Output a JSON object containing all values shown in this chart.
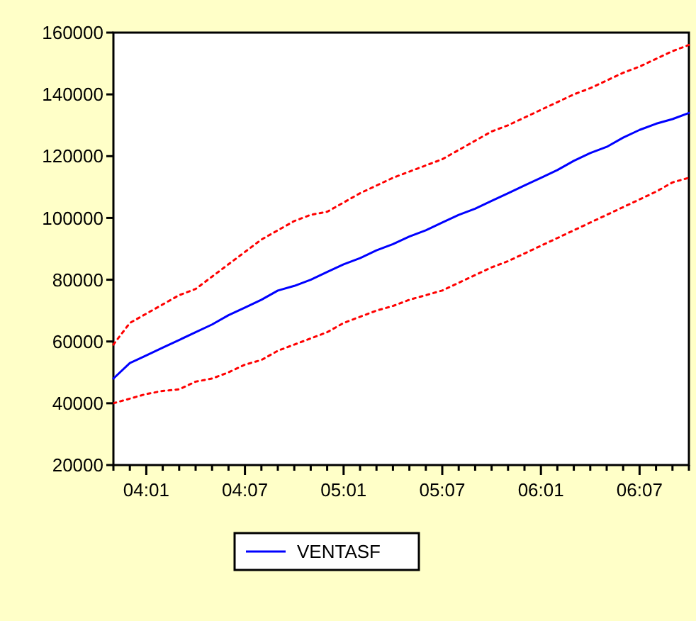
{
  "chart_data": {
    "type": "line",
    "categories": [
      null,
      null,
      "04:01",
      null,
      null,
      null,
      null,
      null,
      "04:07",
      null,
      null,
      null,
      null,
      null,
      "05:01",
      null,
      null,
      null,
      null,
      null,
      "05:07",
      null,
      null,
      null,
      null,
      null,
      "06:01",
      null,
      null,
      null,
      null,
      null,
      "06:07",
      null,
      null,
      null
    ],
    "series": [
      {
        "name": "VENTASF",
        "color": "#0000ff",
        "line_style": "solid",
        "values": [
          48000,
          53000,
          55500,
          58000,
          60500,
          63000,
          65500,
          68500,
          71000,
          73500,
          76500,
          78000,
          80000,
          82500,
          85000,
          87000,
          89500,
          91500,
          94000,
          96000,
          98500,
          101000,
          103000,
          105500,
          108000,
          110500,
          113000,
          115500,
          118500,
          121000,
          123000,
          126000,
          128500,
          130500,
          132000,
          134000
        ]
      },
      {
        "color": "#ff0000",
        "line_style": "dotted",
        "values": [
          59000,
          66000,
          69000,
          72000,
          75000,
          77000,
          81000,
          85000,
          89000,
          93000,
          96000,
          99000,
          101000,
          102000,
          105000,
          108000,
          110500,
          113000,
          115000,
          117000,
          119000,
          122000,
          125000,
          128000,
          130000,
          132500,
          135000,
          137500,
          140000,
          142000,
          144500,
          147000,
          149000,
          151500,
          154000,
          156000
        ]
      },
      {
        "color": "#ff0000",
        "line_style": "dotted",
        "values": [
          40000,
          41500,
          43000,
          44000,
          44500,
          47000,
          48000,
          50000,
          52500,
          54000,
          57000,
          59000,
          61000,
          63000,
          66000,
          68000,
          70000,
          71500,
          73500,
          75000,
          76500,
          79000,
          81500,
          84000,
          86000,
          88500,
          91000,
          93500,
          96000,
          98500,
          101000,
          103500,
          106000,
          108500,
          111500,
          113000
        ]
      }
    ],
    "ylim": [
      20000,
      160000
    ],
    "yticks": [
      20000,
      40000,
      60000,
      80000,
      100000,
      120000,
      140000,
      160000
    ],
    "grid": false,
    "legend": "bottom"
  }
}
